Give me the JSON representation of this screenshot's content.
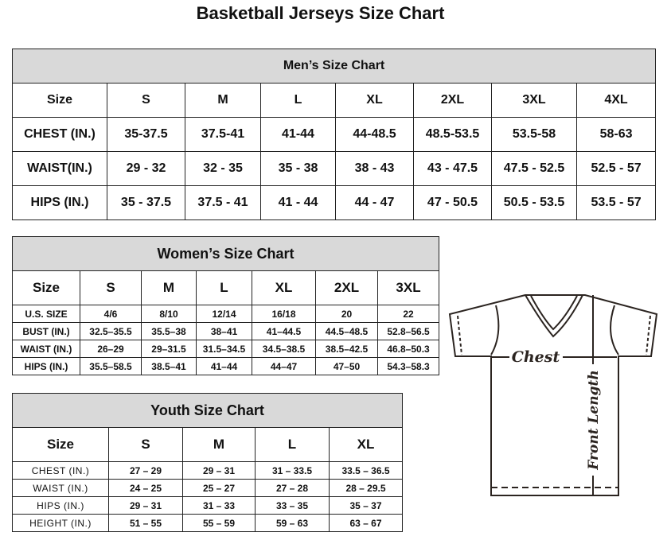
{
  "title": "Basketball Jerseys Size Chart",
  "men": {
    "caption": "Men’s Size Chart",
    "header": [
      "Size",
      "S",
      "M",
      "L",
      "XL",
      "2XL",
      "3XL",
      "4XL"
    ],
    "rows": [
      [
        "CHEST (IN.)",
        "35-37.5",
        "37.5-41",
        "41-44",
        "44-48.5",
        "48.5-53.5",
        "53.5-58",
        "58-63"
      ],
      [
        "WAIST(IN.)",
        "29 - 32",
        "32 - 35",
        "35 - 38",
        "38 - 43",
        "43 - 47.5",
        "47.5 - 52.5",
        "52.5 - 57"
      ],
      [
        "HIPS (IN.)",
        "35 - 37.5",
        "37.5 - 41",
        "41 - 44",
        "44 - 47",
        "47 - 50.5",
        "50.5 - 53.5",
        "53.5 - 57"
      ]
    ]
  },
  "women": {
    "caption": "Women’s Size Chart",
    "header": [
      "Size",
      "S",
      "M",
      "L",
      "XL",
      "2XL",
      "3XL"
    ],
    "rows": [
      [
        "U.S.  SIZE",
        "4/6",
        "8/10",
        "12/14",
        "16/18",
        "20",
        "22"
      ],
      [
        "BUST  (IN.)",
        "32.5–35.5",
        "35.5–38",
        "38–41",
        "41–44.5",
        "44.5–48.5",
        "52.8–56.5"
      ],
      [
        "WAIST  (IN.)",
        "26–29",
        "29–31.5",
        "31.5–34.5",
        "34.5–38.5",
        "38.5–42.5",
        "46.8–50.3"
      ],
      [
        "HIPS  (IN.)",
        "35.5–58.5",
        "38.5–41",
        "41–44",
        "44–47",
        "47–50",
        "54.3–58.3"
      ]
    ]
  },
  "youth": {
    "caption": "Youth Size Chart",
    "header": [
      "Size",
      "S",
      "M",
      "L",
      "XL"
    ],
    "rows": [
      [
        "CHEST  (IN.)",
        "27 – 29",
        "29 – 31",
        "31 – 33.5",
        "33.5 – 36.5"
      ],
      [
        "WAIST  (IN.)",
        "24 – 25",
        "25 – 27",
        "27 – 28",
        "28 – 29.5"
      ],
      [
        "HIPS  (IN.)",
        "29 – 31",
        "31 – 33",
        "33 – 35",
        "35 – 37"
      ],
      [
        "HEIGHT  (IN.)",
        "51 – 55",
        "55 – 59",
        "59 – 63",
        "63 – 67"
      ]
    ]
  },
  "diagram": {
    "chest_label": "Chest",
    "length_label": "Front Length"
  }
}
